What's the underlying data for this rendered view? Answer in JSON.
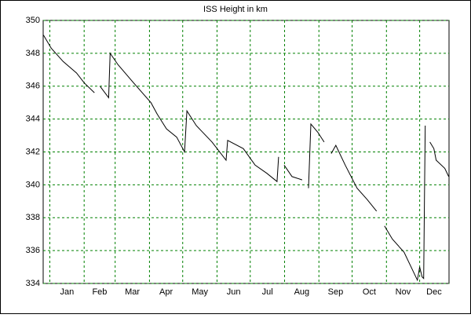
{
  "chart_data": {
    "type": "line",
    "title": "ISS Height in km",
    "x": [
      -5.7,
      1.4,
      12.0,
      24.1,
      31.1,
      40.3,
      null,
      45.3,
      53.1,
      54.5,
      61.6,
      75.7,
      91.3,
      96.9,
      105.4,
      114.6,
      121.7,
      123.8,
      132.3,
      146.5,
      159.2,
      160.6,
      174.8,
      185.4,
      196.0,
      205.2,
      206.6,
      null,
      211.6,
      218.7,
      227.9,
      null,
      233.6,
      235.7,
      242.0,
      247.7,
      null,
      254.1,
      258.3,
      266.8,
      277.4,
      286.6,
      295.1,
      null,
      302.2,
      309.3,
      319.9,
      331.9,
      334.0,
      336.2,
      337.6,
      338.3,
      339.0,
      null,
      343.2,
      346.8,
      348.9,
      356.7,
      360.2
    ],
    "series": [
      {
        "name": "ISS Height",
        "color": "#000000",
        "values": [
          349.1,
          348.3,
          347.5,
          346.8,
          346.2,
          345.6,
          null,
          346.0,
          345.3,
          348.0,
          347.3,
          346.2,
          345.0,
          344.3,
          343.4,
          342.9,
          342.0,
          344.5,
          343.6,
          342.6,
          341.5,
          342.7,
          342.2,
          341.2,
          340.7,
          340.2,
          341.7,
          null,
          341.2,
          340.5,
          340.3,
          null,
          339.8,
          343.7,
          343.2,
          342.6,
          null,
          341.9,
          342.4,
          341.2,
          339.8,
          339.1,
          338.4,
          null,
          337.5,
          336.7,
          335.9,
          334.2,
          335.0,
          334.4,
          334.3,
          339.1,
          343.6,
          null,
          342.6,
          342.2,
          341.5,
          341.0,
          340.5
        ]
      }
    ],
    "xlim": [
      -6,
      360.5
    ],
    "ylim": [
      334,
      350
    ],
    "yticks": [
      334,
      336,
      338,
      340,
      342,
      344,
      346,
      348,
      350
    ],
    "xticks": [
      {
        "value": 15.5,
        "label": "Jan"
      },
      {
        "value": 45,
        "label": "Feb"
      },
      {
        "value": 74.5,
        "label": "Mar"
      },
      {
        "value": 105,
        "label": "Apr"
      },
      {
        "value": 135.5,
        "label": "May"
      },
      {
        "value": 166,
        "label": "Jun"
      },
      {
        "value": 196.5,
        "label": "Jul"
      },
      {
        "value": 227.5,
        "label": "Aug"
      },
      {
        "value": 258,
        "label": "Sep"
      },
      {
        "value": 288.5,
        "label": "Oct"
      },
      {
        "value": 319,
        "label": "Nov"
      },
      {
        "value": 347,
        "label": "Dec"
      }
    ],
    "xgrid": [
      0,
      31,
      59,
      90,
      120,
      151,
      181,
      212,
      243,
      273,
      304,
      334
    ],
    "grid": true,
    "grid_color": "#008000"
  }
}
